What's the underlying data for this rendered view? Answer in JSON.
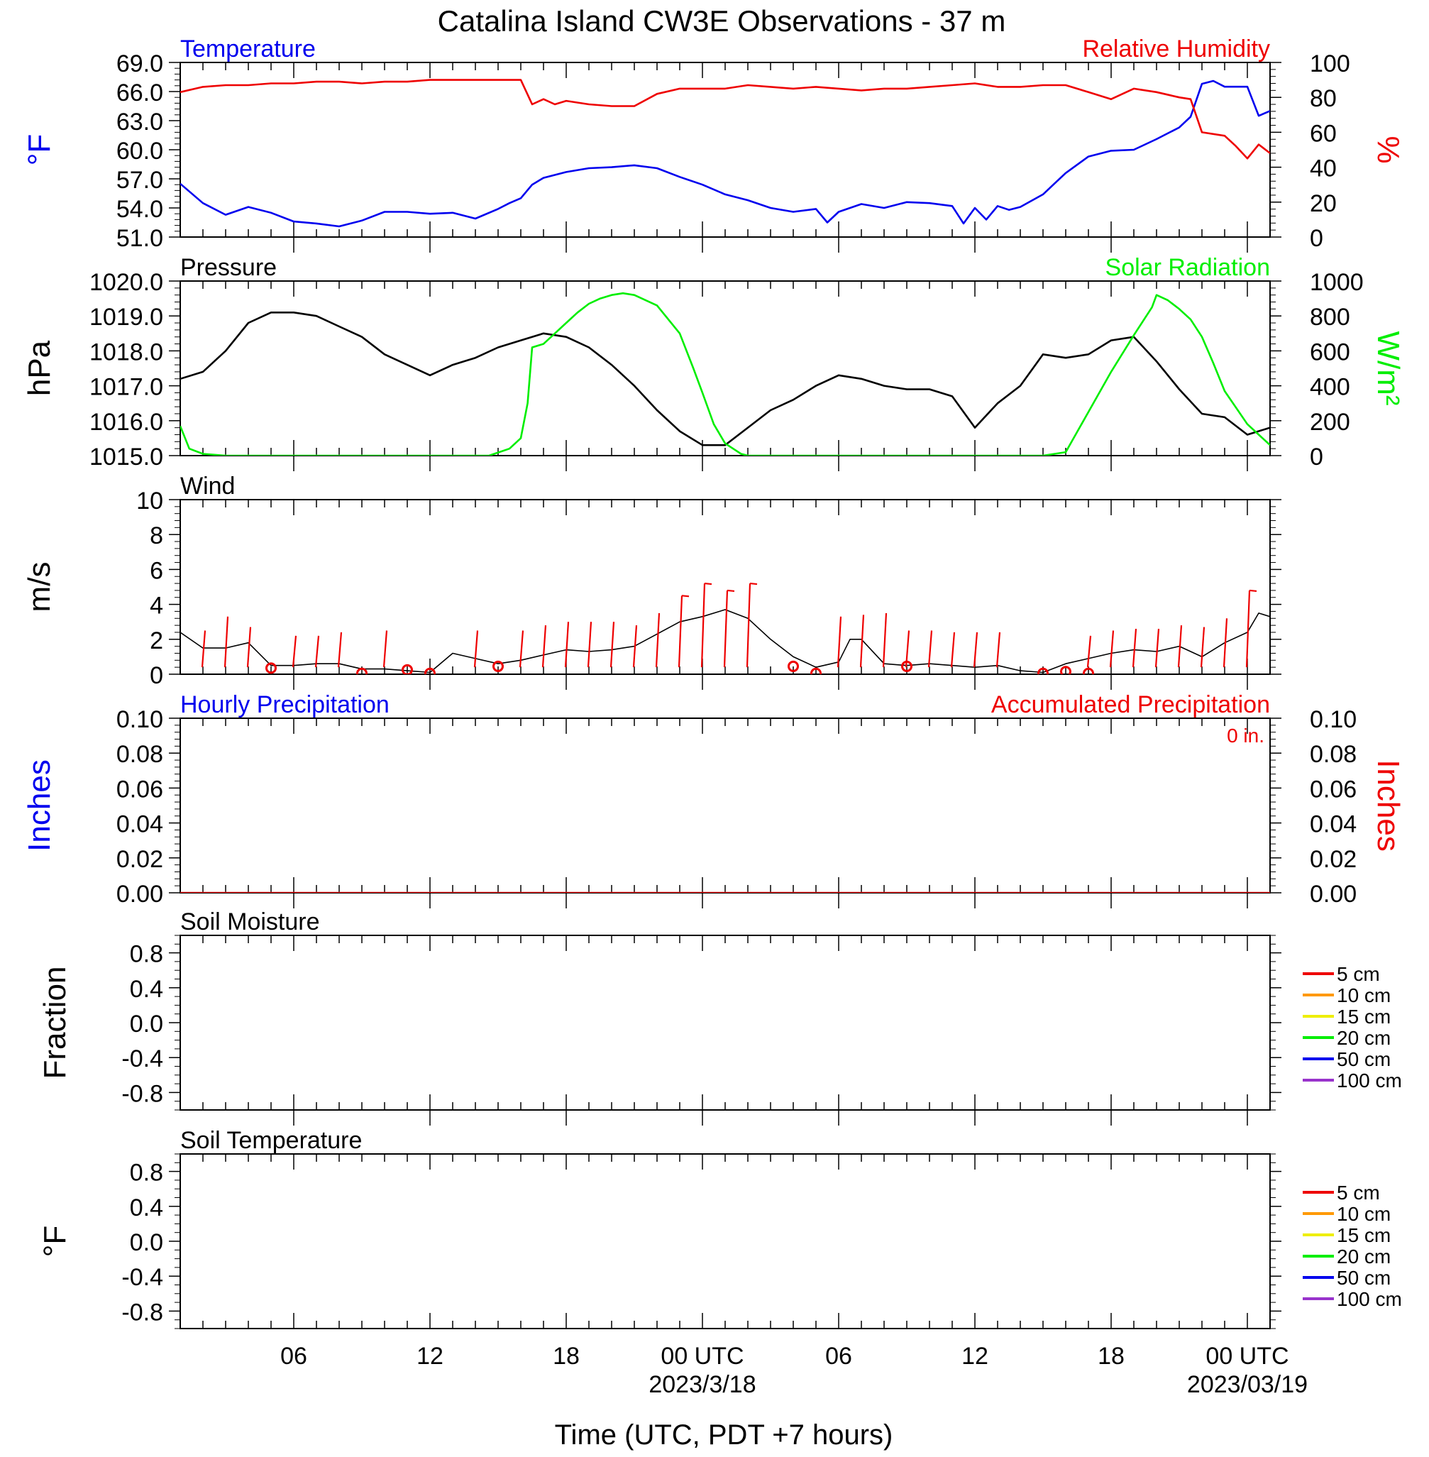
{
  "title": "Catalina Island CW3E Observations - 37 m",
  "xaxis": {
    "label": "Time (UTC, PDT +7 hours)",
    "ticks": [
      {
        "hour": 6,
        "label": "06"
      },
      {
        "hour": 12,
        "label": "12"
      },
      {
        "hour": 18,
        "label": "18"
      },
      {
        "hour": 24,
        "label": "00 UTC",
        "date": "2023/3/18"
      },
      {
        "hour": 30,
        "label": "06"
      },
      {
        "hour": 36,
        "label": "12"
      },
      {
        "hour": 42,
        "label": "18"
      },
      {
        "hour": 48,
        "label": "00 UTC",
        "date": "2023/03/19"
      }
    ],
    "range_hours": [
      1,
      49
    ]
  },
  "chart_data": [
    {
      "id": "temp_rh",
      "type": "line",
      "left_title": "Temperature",
      "right_title": "Relative Humidity",
      "ylabel_left": "°F",
      "ylabel_right": "%",
      "ylim_left": [
        51,
        69
      ],
      "ylim_right": [
        0,
        100
      ],
      "yticks_left": [
        "51.0",
        "54.0",
        "57.0",
        "60.0",
        "63.0",
        "66.0",
        "69.0"
      ],
      "yticks_right": [
        "0",
        "20",
        "40",
        "60",
        "80",
        "100"
      ],
      "series": [
        {
          "axis": "left",
          "color": "#0000ee",
          "x": [
            1,
            2,
            3,
            4,
            5,
            6,
            7,
            8,
            9,
            10,
            11,
            12,
            13,
            14,
            15,
            15.5,
            16,
            16.5,
            17,
            18,
            19,
            20,
            21,
            22,
            23,
            24,
            25,
            26,
            27,
            28,
            29,
            29.5,
            30,
            31,
            32,
            33,
            34,
            35,
            35.5,
            36,
            36.5,
            37,
            37.5,
            38,
            39,
            39.5,
            40,
            41,
            42,
            43,
            44,
            45,
            45.5,
            46,
            46.5,
            47,
            48,
            48.5,
            49
          ],
          "y": [
            56.5,
            54.5,
            53.3,
            54.1,
            53.5,
            52.6,
            52.4,
            52.1,
            52.7,
            53.6,
            53.6,
            53.4,
            53.5,
            52.9,
            53.9,
            54.5,
            55.0,
            56.4,
            57.1,
            57.7,
            58.1,
            58.2,
            58.4,
            58.1,
            57.2,
            56.4,
            55.4,
            54.8,
            54.0,
            53.6,
            53.9,
            52.5,
            53.6,
            54.4,
            54.0,
            54.6,
            54.5,
            54.2,
            52.4,
            54.0,
            52.8,
            54.2,
            53.8,
            54.1,
            55.4,
            56.5,
            57.6,
            59.3,
            59.9,
            60.0,
            61.1,
            62.3,
            63.4,
            66.8,
            67.1,
            66.5,
            66.5,
            63.5,
            64.0
          ]
        },
        {
          "axis": "right",
          "color": "#ee0000",
          "x": [
            1,
            2,
            3,
            4,
            5,
            6,
            7,
            8,
            9,
            10,
            11,
            12,
            13,
            14,
            15,
            16,
            16.5,
            17,
            17.5,
            18,
            19,
            20,
            21,
            22,
            23,
            24,
            25,
            26,
            27,
            28,
            29,
            30,
            31,
            32,
            33,
            34,
            35,
            36,
            37,
            38,
            39,
            40,
            41,
            42,
            43,
            44,
            45,
            45.5,
            46,
            47,
            47.5,
            48,
            48.5,
            49
          ],
          "y": [
            83,
            86,
            87,
            87,
            88,
            88,
            89,
            89,
            88,
            89,
            89,
            90,
            90,
            90,
            90,
            90,
            76,
            79,
            76,
            78,
            76,
            75,
            75,
            82,
            85,
            85,
            85,
            87,
            86,
            85,
            86,
            85,
            84,
            85,
            85,
            86,
            87,
            88,
            86,
            86,
            87,
            87,
            83,
            79,
            85,
            83,
            80,
            79,
            60,
            58,
            52,
            45,
            53,
            48
          ]
        }
      ]
    },
    {
      "id": "pressure_solar",
      "type": "line",
      "left_title": "Pressure",
      "right_title": "Solar Radiation",
      "ylabel_left": "hPa",
      "ylabel_right": "W/m²",
      "ylim_left": [
        1015,
        1020
      ],
      "ylim_right": [
        0,
        1000
      ],
      "yticks_left": [
        "1015.0",
        "1016.0",
        "1017.0",
        "1018.0",
        "1019.0",
        "1020.0"
      ],
      "yticks_right": [
        "0",
        "200",
        "400",
        "600",
        "800",
        "1000"
      ],
      "series": [
        {
          "axis": "left",
          "color": "#000000",
          "x": [
            1,
            2,
            3,
            4,
            5,
            6,
            7,
            8,
            9,
            10,
            11,
            12,
            13,
            14,
            15,
            16,
            17,
            18,
            19,
            20,
            21,
            22,
            23,
            24,
            25,
            26,
            27,
            28,
            29,
            30,
            31,
            32,
            33,
            34,
            35,
            36,
            37,
            38,
            39,
            40,
            41,
            42,
            43,
            44,
            45,
            46,
            47,
            48,
            49
          ],
          "y": [
            1017.2,
            1017.4,
            1018.0,
            1018.8,
            1019.1,
            1019.1,
            1019.0,
            1018.7,
            1018.4,
            1017.9,
            1017.6,
            1017.3,
            1017.6,
            1017.8,
            1018.1,
            1018.3,
            1018.5,
            1018.4,
            1018.1,
            1017.6,
            1017.0,
            1016.3,
            1015.7,
            1015.3,
            1015.3,
            1015.8,
            1016.3,
            1016.6,
            1017.0,
            1017.3,
            1017.2,
            1017.0,
            1016.9,
            1016.9,
            1016.7,
            1015.8,
            1016.5,
            1017.0,
            1017.9,
            1017.8,
            1017.9,
            1018.3,
            1018.4,
            1017.7,
            1016.9,
            1016.2,
            1016.1,
            1015.6,
            1015.8
          ]
        },
        {
          "axis": "right",
          "color": "#00ee00",
          "x": [
            1,
            1.4,
            2,
            3,
            4,
            5,
            6,
            7,
            8,
            9,
            10,
            11,
            12,
            13,
            14,
            14.6,
            15.5,
            16,
            16.3,
            16.5,
            17,
            17.5,
            18,
            18.5,
            19,
            19.5,
            20,
            20.5,
            21,
            22,
            23,
            23.6,
            24,
            24.5,
            25,
            25.7,
            26,
            26.3,
            27,
            28,
            29,
            30,
            31,
            32,
            33,
            34,
            35,
            36,
            37,
            37.5,
            38,
            38.4,
            39,
            40,
            41,
            42,
            43,
            43.8,
            44,
            44.5,
            45,
            45.5,
            46,
            46.5,
            47,
            48,
            49
          ],
          "y": [
            170,
            40,
            10,
            0,
            0,
            0,
            0,
            0,
            0,
            0,
            0,
            0,
            0,
            0,
            0,
            0,
            40,
            100,
            300,
            620,
            640,
            700,
            760,
            820,
            870,
            900,
            920,
            930,
            920,
            860,
            700,
            500,
            360,
            180,
            70,
            10,
            0,
            0,
            0,
            0,
            0,
            0,
            0,
            0,
            0,
            0,
            0,
            0,
            0,
            0,
            0,
            0,
            0,
            20,
            250,
            480,
            690,
            850,
            920,
            890,
            840,
            780,
            680,
            530,
            370,
            180,
            60
          ]
        }
      ]
    },
    {
      "id": "wind",
      "type": "line",
      "left_title": "Wind",
      "ylabel_left": "m/s",
      "ylim_left": [
        0,
        10
      ],
      "yticks_left": [
        "0",
        "2",
        "4",
        "6",
        "8",
        "10"
      ],
      "series": [
        {
          "axis": "left",
          "color": "#000000",
          "x": [
            1,
            2,
            3,
            4,
            5,
            6,
            7,
            8,
            9,
            10,
            11,
            12,
            13,
            14,
            15,
            16,
            17,
            18,
            19,
            20,
            21,
            22,
            23,
            24,
            25,
            26,
            27,
            28,
            29,
            30,
            30.5,
            31,
            32,
            33,
            34,
            35,
            36,
            37,
            38,
            39,
            40,
            41,
            42,
            43,
            44,
            45,
            46,
            47,
            48,
            48.5,
            49
          ],
          "y": [
            2.4,
            1.5,
            1.5,
            1.8,
            0.5,
            0.5,
            0.6,
            0.6,
            0.3,
            0.3,
            0.2,
            0.1,
            1.2,
            0.9,
            0.6,
            0.8,
            1.1,
            1.4,
            1.3,
            1.4,
            1.6,
            2.3,
            3.0,
            3.3,
            3.7,
            3.2,
            2.0,
            1.0,
            0.4,
            0.7,
            2.0,
            2.0,
            0.6,
            0.5,
            0.6,
            0.5,
            0.4,
            0.5,
            0.2,
            0.1,
            0.6,
            0.9,
            1.2,
            1.4,
            1.3,
            1.6,
            1.0,
            1.8,
            2.4,
            3.5,
            3.3
          ]
        }
      ],
      "barbs": {
        "color": "#ee0000",
        "x": [
          2,
          3,
          4,
          6,
          7,
          8,
          10,
          14,
          16,
          17,
          18,
          19,
          20,
          21,
          22,
          23,
          24,
          25,
          26,
          30,
          31,
          32,
          33,
          34,
          35,
          36,
          37,
          41,
          42,
          43,
          44,
          45,
          46,
          47,
          48
        ],
        "speed": [
          2.5,
          3.3,
          2.7,
          2.2,
          2.2,
          2.4,
          2.5,
          2.5,
          2.5,
          2.8,
          3.0,
          3.0,
          3.0,
          2.8,
          3.5,
          4.5,
          5.2,
          4.8,
          5.2,
          3.3,
          3.4,
          3.5,
          2.5,
          2.5,
          2.4,
          2.4,
          2.4,
          2.2,
          2.5,
          2.6,
          2.6,
          2.8,
          2.7,
          3.2,
          4.8
        ],
        "calm_x": [
          5,
          9,
          11,
          12,
          15,
          28,
          29,
          33,
          39,
          40,
          41
        ],
        "calm_y": [
          0.35,
          0.05,
          0.25,
          0.05,
          0.45,
          0.45,
          0.05,
          0.45,
          0.05,
          0.15,
          0.05
        ]
      }
    },
    {
      "id": "precip",
      "type": "line",
      "left_title": "Hourly Precipitation",
      "right_title": "Accumulated Precipitation",
      "annotation": "0 in.",
      "ylabel_left": "Inches",
      "ylabel_right": "Inches",
      "ylim_left": [
        0,
        0.1
      ],
      "ylim_right": [
        0,
        0.1
      ],
      "yticks_left": [
        "0.00",
        "0.02",
        "0.04",
        "0.06",
        "0.08",
        "0.10"
      ],
      "yticks_right": [
        "0.00",
        "0.02",
        "0.04",
        "0.06",
        "0.08",
        "0.10"
      ],
      "series": [
        {
          "axis": "left",
          "color": "#ee0000",
          "x": [
            1,
            49
          ],
          "y": [
            0,
            0
          ]
        }
      ]
    },
    {
      "id": "soil_moisture",
      "type": "line",
      "left_title": "Soil Moisture",
      "ylabel_left": "Fraction",
      "ylim_left": [
        -1,
        1
      ],
      "yticks_left": [
        "-0.8",
        "-0.4",
        "0.0",
        "0.4",
        "0.8"
      ],
      "legend_position": "right",
      "legend": [
        {
          "name": "5 cm",
          "color": "#ee0000"
        },
        {
          "name": "10 cm",
          "color": "#ff9900"
        },
        {
          "name": "15 cm",
          "color": "#eeee00"
        },
        {
          "name": "20 cm",
          "color": "#00ee00"
        },
        {
          "name": "50 cm",
          "color": "#0000ee"
        },
        {
          "name": "100 cm",
          "color": "#9933cc"
        }
      ],
      "series": []
    },
    {
      "id": "soil_temperature",
      "type": "line",
      "left_title": "Soil Temperature",
      "ylabel_left": "°F",
      "ylim_left": [
        -1,
        1
      ],
      "yticks_left": [
        "-0.8",
        "-0.4",
        "0.0",
        "0.4",
        "0.8"
      ],
      "legend_position": "right",
      "legend": [
        {
          "name": "5 cm",
          "color": "#ee0000"
        },
        {
          "name": "10 cm",
          "color": "#ff9900"
        },
        {
          "name": "15 cm",
          "color": "#eeee00"
        },
        {
          "name": "20 cm",
          "color": "#00ee00"
        },
        {
          "name": "50 cm",
          "color": "#0000ee"
        },
        {
          "name": "100 cm",
          "color": "#9933cc"
        }
      ],
      "series": []
    }
  ]
}
